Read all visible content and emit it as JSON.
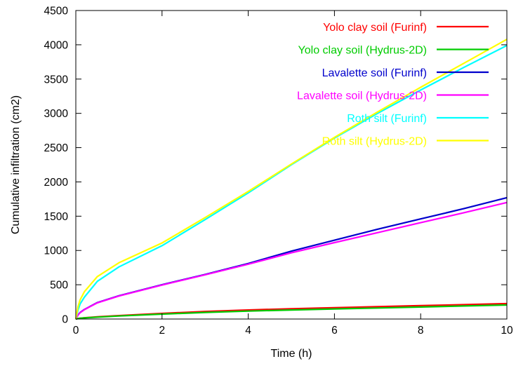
{
  "chart_data": {
    "type": "line",
    "title": "",
    "xlabel": "Time (h)",
    "ylabel": "Cumulative infiltration (cm2)",
    "xlim": [
      0,
      10
    ],
    "ylim": [
      0,
      4500
    ],
    "xticks": [
      0,
      2,
      4,
      6,
      8,
      10
    ],
    "yticks": [
      0,
      500,
      1000,
      1500,
      2000,
      2500,
      3000,
      3500,
      4000,
      4500
    ],
    "grid": false,
    "legend_position": "top-right",
    "x": [
      0,
      0.05,
      0.1,
      0.2,
      0.5,
      1,
      2,
      3,
      4,
      5,
      6,
      7,
      8,
      9,
      10
    ],
    "series": [
      {
        "name": "Yolo clay soil (Furinf)",
        "color": "#ff0000",
        "y": [
          0,
          8,
          12,
          18,
          32,
          50,
          82,
          110,
          132,
          150,
          165,
          180,
          195,
          210,
          225
        ]
      },
      {
        "name": "Yolo clay soil (Hydrus-2D)",
        "color": "#00cc00",
        "y": [
          0,
          7,
          11,
          16,
          28,
          44,
          72,
          96,
          116,
          132,
          147,
          161,
          175,
          190,
          205
        ]
      },
      {
        "name": "Lavalette soil (Furinf)",
        "color": "#0000cc",
        "y": [
          0,
          60,
          95,
          140,
          240,
          340,
          500,
          650,
          810,
          990,
          1150,
          1310,
          1460,
          1610,
          1770
        ]
      },
      {
        "name": "Lavalette soil (Hydrus-2D)",
        "color": "#ff00ff",
        "y": [
          0,
          58,
          92,
          137,
          236,
          335,
          495,
          645,
          800,
          965,
          1115,
          1260,
          1405,
          1550,
          1700
        ]
      },
      {
        "name": "Roth silt (Furinf)",
        "color": "#00ffff",
        "y": [
          0,
          130,
          220,
          320,
          550,
          760,
          1070,
          1450,
          1840,
          2250,
          2640,
          3000,
          3340,
          3670,
          3990
        ]
      },
      {
        "name": "Roth silt (Hydrus-2D)",
        "color": "#ffff00",
        "y": [
          0,
          180,
          280,
          400,
          620,
          820,
          1110,
          1480,
          1860,
          2260,
          2650,
          3020,
          3380,
          3730,
          4080
        ]
      }
    ]
  }
}
